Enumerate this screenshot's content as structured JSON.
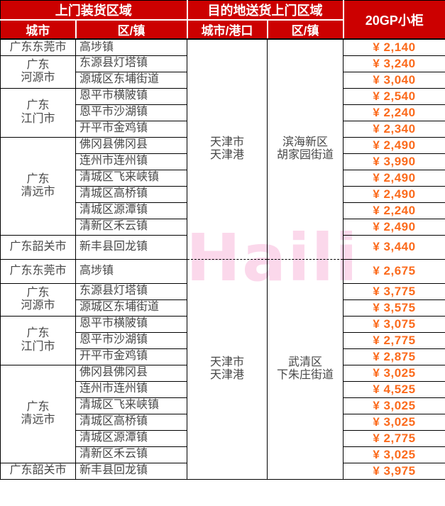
{
  "colors": {
    "header_bg": "#CC0000",
    "price": "#FB6B1D",
    "body_text": "#474747",
    "grid": "#000000",
    "watermark": "#FBD8EB"
  },
  "watermark_text": "Haili",
  "table": {
    "header": {
      "pickup_group_label": "上门装货区域",
      "delivery_group_label": "目的地送货上门区域",
      "container_label": "20GP小柜",
      "pickup_city_label": "城市",
      "pickup_district_label": "区/镇",
      "delivery_city_label": "城市/港口",
      "delivery_district_label": "区/镇"
    },
    "sections": [
      {
        "destination": {
          "city_port": "天津市\n天津港",
          "district": "滨海新区\n胡家园街道"
        },
        "groups": [
          {
            "city": "广东东莞市",
            "rows": [
              {
                "town": "高埗镇",
                "price": "¥ 2,140"
              }
            ]
          },
          {
            "city": "广东\n河源市",
            "rows": [
              {
                "town": "东源县灯塔镇",
                "price": "¥ 3,240"
              },
              {
                "town": "源城区东埔街道",
                "price": "¥ 3,040"
              }
            ]
          },
          {
            "city": "广东\n江门市",
            "rows": [
              {
                "town": "恩平市横陂镇",
                "price": "¥ 2,540"
              },
              {
                "town": "恩平市沙湖镇",
                "price": "¥ 2,240"
              },
              {
                "town": "开平市金鸡镇",
                "price": "¥ 2,340"
              }
            ]
          },
          {
            "city": "广东\n清远市",
            "rows": [
              {
                "town": "佛冈县佛冈县",
                "price": "¥ 2,490"
              },
              {
                "town": "连州市连州镇",
                "price": "¥ 3,990"
              },
              {
                "town": "清城区飞来峡镇",
                "price": "¥ 2,490"
              },
              {
                "town": "清城区高桥镇",
                "price": "¥ 2,490"
              },
              {
                "town": "清城区源潭镇",
                "price": "¥ 2,240"
              },
              {
                "town": "清新区禾云镇",
                "price": "¥ 2,490"
              }
            ]
          },
          {
            "city": "广东韶关市",
            "rows": [
              {
                "town": "新丰县回龙镇",
                "price": "¥ 3,440"
              }
            ]
          }
        ]
      },
      {
        "destination": {
          "city_port": "天津市\n天津港",
          "district": "武清区\n下朱庄街道"
        },
        "groups": [
          {
            "city": "广东东莞市",
            "rows": [
              {
                "town": "高埗镇",
                "price": "¥ 2,675"
              }
            ]
          },
          {
            "city": "广东\n河源市",
            "rows": [
              {
                "town": "东源县灯塔镇",
                "price": "¥ 3,775"
              },
              {
                "town": "源城区东埔街道",
                "price": "¥ 3,575"
              }
            ]
          },
          {
            "city": "广东\n江门市",
            "rows": [
              {
                "town": "恩平市横陂镇",
                "price": "¥ 3,075"
              },
              {
                "town": "恩平市沙湖镇",
                "price": "¥ 2,775"
              },
              {
                "town": "开平市金鸡镇",
                "price": "¥ 2,875"
              }
            ]
          },
          {
            "city": "广东\n清远市",
            "rows": [
              {
                "town": "佛冈县佛冈县",
                "price": "¥ 3,025"
              },
              {
                "town": "连州市连州镇",
                "price": "¥ 4,525"
              },
              {
                "town": "清城区飞来峡镇",
                "price": "¥ 3,025"
              },
              {
                "town": "清城区高桥镇",
                "price": "¥ 3,025"
              },
              {
                "town": "清城区源潭镇",
                "price": "¥ 2,775"
              },
              {
                "town": "清新区禾云镇",
                "price": "¥ 3,025"
              }
            ]
          },
          {
            "city": "广东韶关市",
            "rows": [
              {
                "town": "新丰县回龙镇",
                "price": "¥ 3,975"
              }
            ]
          }
        ]
      }
    ]
  }
}
